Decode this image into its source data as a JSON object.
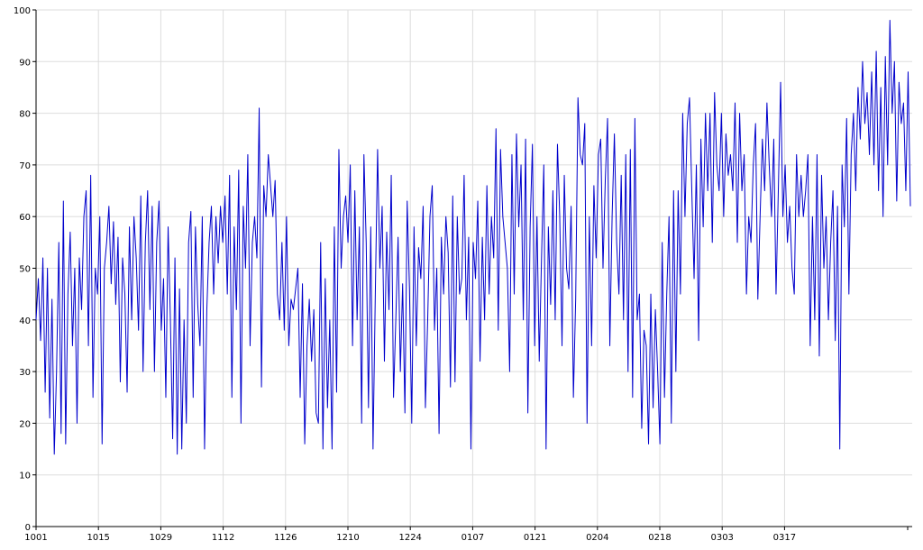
{
  "chart_data": {
    "type": "line",
    "title": "",
    "xlabel": "",
    "ylabel": "",
    "ylim": [
      0,
      100
    ],
    "yticks": [
      0,
      10,
      20,
      30,
      40,
      50,
      60,
      70,
      80,
      90,
      100
    ],
    "xtick_labels": [
      "1001",
      "1015",
      "1029",
      "1112",
      "1126",
      "1210",
      "1224",
      "0107",
      "0121",
      "0204",
      "0218",
      "0303",
      "0317"
    ],
    "grid": true,
    "legend": "none",
    "series": [
      {
        "color": "#0000cc",
        "x_start": "1001",
        "x_end": "0330",
        "values": [
          40,
          48,
          36,
          52,
          26,
          50,
          21,
          44,
          14,
          30,
          55,
          18,
          63,
          16,
          45,
          57,
          35,
          50,
          20,
          52,
          42,
          60,
          65,
          35,
          68,
          25,
          50,
          45,
          60,
          16,
          50,
          55,
          62,
          47,
          59,
          43,
          56,
          28,
          52,
          45,
          26,
          58,
          40,
          60,
          52,
          38,
          64,
          30,
          55,
          65,
          42,
          62,
          30,
          55,
          63,
          38,
          48,
          25,
          58,
          40,
          17,
          52,
          14,
          46,
          15,
          40,
          20,
          55,
          61,
          25,
          58,
          43,
          35,
          60,
          15,
          42,
          55,
          62,
          45,
          60,
          51,
          62,
          55,
          64,
          45,
          68,
          25,
          58,
          42,
          69,
          20,
          62,
          50,
          72,
          35,
          55,
          60,
          52,
          81,
          27,
          66,
          60,
          72,
          66,
          60,
          67,
          45,
          40,
          55,
          38,
          60,
          35,
          44,
          42,
          46,
          50,
          25,
          47,
          16,
          35,
          44,
          32,
          42,
          22,
          20,
          55,
          15,
          48,
          23,
          40,
          15,
          58,
          26,
          73,
          50,
          60,
          64,
          55,
          70,
          35,
          65,
          40,
          58,
          20,
          72,
          55,
          23,
          58,
          15,
          45,
          73,
          50,
          62,
          32,
          57,
          42,
          68,
          25,
          40,
          56,
          30,
          47,
          22,
          63,
          46,
          20,
          58,
          35,
          54,
          48,
          62,
          23,
          40,
          60,
          66,
          38,
          50,
          18,
          56,
          45,
          60,
          53,
          27,
          64,
          28,
          60,
          45,
          48,
          68,
          40,
          56,
          15,
          55,
          48,
          63,
          32,
          56,
          40,
          66,
          45,
          60,
          52,
          77,
          38,
          73,
          60,
          55,
          50,
          30,
          72,
          45,
          76,
          58,
          70,
          40,
          75,
          22,
          58,
          74,
          35,
          60,
          32,
          52,
          70,
          15,
          58,
          43,
          65,
          40,
          74,
          60,
          35,
          68,
          50,
          46,
          62,
          25,
          44,
          83,
          72,
          70,
          78,
          20,
          60,
          35,
          66,
          52,
          72,
          75,
          50,
          67,
          79,
          35,
          60,
          76,
          55,
          45,
          68,
          40,
          72,
          30,
          73,
          25,
          79,
          40,
          45,
          19,
          38,
          35,
          16,
          45,
          23,
          42,
          30,
          16,
          55,
          25,
          45,
          60,
          20,
          65,
          30,
          65,
          45,
          80,
          60,
          78,
          83,
          65,
          48,
          70,
          36,
          75,
          58,
          80,
          65,
          80,
          55,
          84,
          70,
          65,
          80,
          60,
          76,
          68,
          72,
          65,
          82,
          55,
          80,
          65,
          72,
          45,
          60,
          55,
          70,
          78,
          44,
          60,
          75,
          65,
          82,
          70,
          60,
          75,
          45,
          65,
          86,
          60,
          70,
          55,
          62,
          50,
          45,
          72,
          60,
          68,
          60,
          65,
          72,
          35,
          60,
          40,
          72,
          33,
          68,
          50,
          60,
          40,
          55,
          65,
          36,
          62,
          15,
          70,
          58,
          79,
          45,
          72,
          80,
          65,
          85,
          75,
          90,
          78,
          84,
          72,
          88,
          70,
          92,
          65,
          85,
          60,
          91,
          70,
          98,
          80,
          90,
          63,
          86,
          78,
          82,
          65,
          88,
          62
        ]
      }
    ]
  }
}
